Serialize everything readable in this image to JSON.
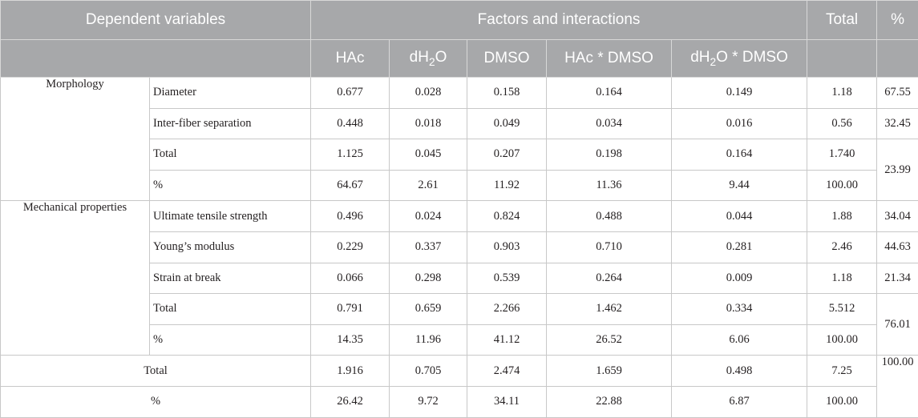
{
  "header": {
    "dependent_variables": "Dependent variables",
    "factors_and_interactions": "Factors and interactions",
    "total": "Total",
    "percent": "%",
    "factor_hac": "HAc",
    "factor_dh2o_prefix": "dH",
    "factor_dh2o_sub": "2",
    "factor_dh2o_suffix": "O",
    "factor_dmso": "DMSO",
    "factor_hac_dmso": "HAc * DMSO",
    "factor_dh2o_dmso_prefix": "dH",
    "factor_dh2o_dmso_sub": "2",
    "factor_dh2o_dmso_suffix": "O * DMSO"
  },
  "morphology": {
    "group": "Morphology",
    "rows": [
      {
        "label": "Diameter",
        "values": [
          "0.677",
          "0.028",
          "0.158",
          "0.164",
          "0.149"
        ],
        "total": "1.18",
        "percent": "67.55"
      },
      {
        "label": "Inter-fiber separation",
        "values": [
          "0.448",
          "0.018",
          "0.049",
          "0.034",
          "0.016"
        ],
        "total": "0.56",
        "percent": "32.45"
      },
      {
        "label": "Total",
        "values": [
          "1.125",
          "0.045",
          "0.207",
          "0.198",
          "0.164"
        ],
        "total": "1.740",
        "percent": "23.99"
      },
      {
        "label": "%",
        "values": [
          "64.67",
          "2.61",
          "11.92",
          "11.36",
          "9.44"
        ],
        "total": "100.00"
      }
    ]
  },
  "mechanical": {
    "group": "Mechanical properties",
    "rows": [
      {
        "label": "Ultimate tensile strength",
        "values": [
          "0.496",
          "0.024",
          "0.824",
          "0.488",
          "0.044"
        ],
        "total": "1.88",
        "percent": "34.04"
      },
      {
        "label": "Young’s modulus",
        "values": [
          "0.229",
          "0.337",
          "0.903",
          "0.710",
          "0.281"
        ],
        "total": "2.46",
        "percent": "44.63"
      },
      {
        "label": "Strain at break",
        "values": [
          "0.066",
          "0.298",
          "0.539",
          "0.264",
          "0.009"
        ],
        "total": "1.18",
        "percent": "21.34"
      },
      {
        "label": "Total",
        "values": [
          "0.791",
          "0.659",
          "2.266",
          "1.462",
          "0.334"
        ],
        "total": "5.512",
        "percent": "76.01"
      },
      {
        "label": "%",
        "values": [
          "14.35",
          "11.96",
          "41.12",
          "26.52",
          "6.06"
        ],
        "total": "100.00"
      }
    ]
  },
  "grand_total": {
    "label": "Total",
    "values": [
      "1.916",
      "0.705",
      "2.474",
      "1.659",
      "0.498"
    ],
    "total": "7.25",
    "percent": "100.00"
  },
  "grand_percent": {
    "label": "%",
    "values": [
      "26.42",
      "9.72",
      "34.11",
      "22.88",
      "6.87"
    ],
    "total": "100.00"
  }
}
